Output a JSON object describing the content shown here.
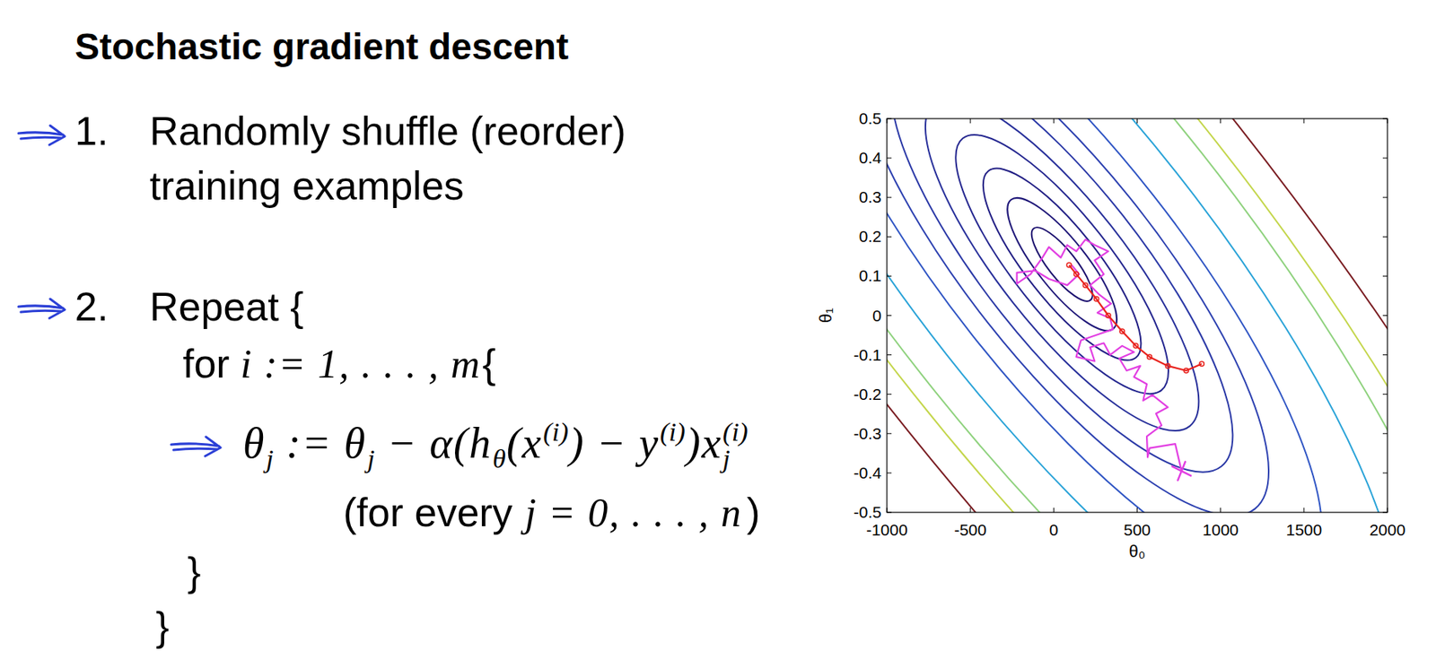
{
  "slide": {
    "title": "Stochastic gradient descent",
    "steps": [
      {
        "number": "1.",
        "lines": [
          "Randomly shuffle (reorder)",
          "training examples"
        ]
      },
      {
        "number": "2.",
        "lines": [
          "Repeat {"
        ]
      }
    ],
    "loop": {
      "keyword": "for",
      "expr": "i := 1, . . . , m",
      "open": "{"
    },
    "update": [
      {
        "text": "θ",
        "sub": "j"
      },
      {
        "text": " := "
      },
      {
        "text": "θ",
        "sub": "j"
      },
      {
        "text": " − α("
      },
      {
        "text": "h",
        "sub": "θ"
      },
      {
        "text": "(x",
        "sup": "(i)"
      },
      {
        "text": ") − y",
        "sup": "(i)"
      },
      {
        "text": ")x",
        "sub": "j",
        "sup": "(i)"
      }
    ],
    "update_note": {
      "open": "(",
      "text": "for every",
      "expr": "j = 0, . . . , n",
      "close": ")"
    },
    "closing": [
      "}",
      "}"
    ]
  },
  "chart_data": {
    "type": "contour",
    "x_label": "θ₀",
    "y_label": "θ₁",
    "xlim": [
      -1000,
      2000
    ],
    "ylim": [
      -0.5,
      0.5
    ],
    "xticks": [
      -1000,
      -500,
      0,
      500,
      1000,
      1500,
      2000
    ],
    "yticks": [
      -0.5,
      -0.4,
      -0.3,
      -0.2,
      -0.1,
      0,
      0.1,
      0.2,
      0.3,
      0.4,
      0.5
    ],
    "contour_center": [
      50,
      0.13
    ],
    "contours": [
      {
        "color": "#1b0f6e",
        "axis_a": [
          170,
          -0.091
        ],
        "axis_b": [
          65,
          0.022
        ]
      },
      {
        "color": "#1e1678",
        "axis_a": [
          306,
          -0.164
        ],
        "axis_b": [
          116,
          0.039
        ]
      },
      {
        "color": "#211e84",
        "axis_a": [
          442,
          -0.237
        ],
        "axis_b": [
          168,
          0.056
        ]
      },
      {
        "color": "#24268f",
        "axis_a": [
          595,
          -0.32
        ],
        "axis_b": [
          228,
          0.076
        ]
      },
      {
        "color": "#272f9a",
        "axis_a": [
          765,
          -0.411
        ],
        "axis_b": [
          293,
          0.098
        ]
      },
      {
        "color": "#2a38a6",
        "axis_a": [
          955,
          -0.513
        ],
        "axis_b": [
          366,
          0.123
        ]
      },
      {
        "color": "#2c40b0",
        "axis_a": [
          1156,
          -0.621
        ],
        "axis_b": [
          444,
          0.149
        ]
      },
      {
        "color": "#2f55c4",
        "axis_a": [
          1462,
          -0.785
        ],
        "axis_b": [
          538,
          0.18
        ]
      },
      {
        "color": "#2aa3d8",
        "axis_a": [
          1904,
          -1.023
        ],
        "axis_b": [
          689,
          0.231
        ]
      },
      {
        "color": "#8fd27e",
        "axis_a": [
          2380,
          -1.278
        ],
        "axis_b": [
          840,
          0.281
        ]
      },
      {
        "color": "#c4d64c",
        "axis_a": [
          2720,
          -1.461
        ],
        "axis_b": [
          926,
          0.31
        ]
      },
      {
        "color": "#7a1d22",
        "axis_a": [
          3400,
          -1.826
        ],
        "axis_b": [
          1055,
          0.353
        ]
      }
    ],
    "series": [
      {
        "type": "line",
        "color": "#e23fe2",
        "marker": "none",
        "x": [
          766,
          728,
          574,
          563,
          558,
          646,
          613,
          684,
          591,
          536,
          558,
          481,
          519,
          437,
          393,
          481,
          410,
          338,
          300,
          218,
          245,
          135,
          163,
          273,
          355,
          338,
          262,
          344,
          273,
          218,
          300,
          245,
          327,
          245,
          190,
          135,
          81,
          42,
          -29,
          -68,
          -139,
          -221,
          -221,
          -111,
          -29,
          81,
          152,
          108
        ],
        "values": [
          -0.395,
          -0.326,
          -0.337,
          -0.36,
          -0.307,
          -0.279,
          -0.249,
          -0.233,
          -0.202,
          -0.216,
          -0.174,
          -0.156,
          -0.128,
          -0.14,
          -0.109,
          -0.093,
          -0.077,
          -0.1,
          -0.07,
          -0.081,
          -0.116,
          -0.105,
          -0.063,
          -0.047,
          -0.035,
          -0.007,
          0.007,
          0.03,
          0.053,
          0.077,
          0.105,
          0.14,
          0.163,
          0.179,
          0.193,
          0.163,
          0.179,
          0.147,
          0.174,
          0.147,
          0.105,
          0.081,
          0.109,
          0.114,
          0.093,
          0.077,
          0.105,
          0.128
        ]
      },
      {
        "type": "line",
        "color": "#e8231e",
        "marker": "circle",
        "x": [
          887,
          794,
          684,
          574,
          492,
          410,
          327,
          256,
          190,
          135,
          92
        ],
        "values": [
          -0.123,
          -0.14,
          -0.128,
          -0.105,
          -0.077,
          -0.04,
          0,
          0.042,
          0.077,
          0.105,
          0.128
        ]
      },
      {
        "type": "scatter",
        "color": "#e23fe2",
        "marker": "x",
        "x": [
          766
        ],
        "values": [
          -0.395
        ]
      }
    ]
  }
}
